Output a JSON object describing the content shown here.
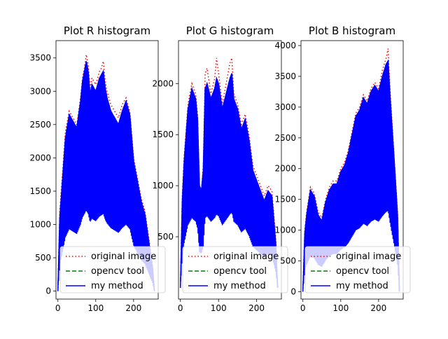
{
  "chart_data": [
    {
      "type": "line",
      "title": "Plot R histogram",
      "xlim": [
        -5,
        265
      ],
      "ylim": [
        -120,
        3760
      ],
      "xticks": [
        0,
        100,
        200
      ],
      "yticks": [
        0,
        500,
        1000,
        1500,
        2000,
        2500,
        3000,
        3500
      ],
      "legend_position": "bottom-left",
      "series": [
        {
          "name": "original image",
          "color": "#ff0000",
          "style": "dotted",
          "x": [
            0,
            5,
            10,
            20,
            30,
            40,
            50,
            60,
            65,
            70,
            75,
            80,
            85,
            90,
            100,
            110,
            115,
            120,
            125,
            130,
            140,
            150,
            160,
            170,
            180,
            190,
            200,
            210,
            220,
            230,
            240,
            250,
            255
          ],
          "y": [
            0,
            1200,
            1600,
            2400,
            2700,
            2600,
            2500,
            2900,
            3200,
            3350,
            3550,
            3400,
            3050,
            3200,
            3100,
            3300,
            3350,
            3450,
            3150,
            3000,
            2800,
            2700,
            2600,
            2800,
            2900,
            2700,
            2000,
            1700,
            1400,
            1200,
            800,
            400,
            0
          ]
        },
        {
          "name": "opencv tool",
          "color": "#008000",
          "style": "dashed",
          "x": [
            0,
            5,
            10,
            20,
            30,
            40,
            50,
            60,
            65,
            70,
            75,
            80,
            85,
            90,
            100,
            110,
            115,
            120,
            125,
            130,
            140,
            150,
            160,
            170,
            180,
            190,
            200,
            210,
            220,
            230,
            240,
            250,
            255
          ],
          "y": [
            0,
            1100,
            1500,
            2300,
            2650,
            2550,
            2450,
            2850,
            3150,
            3300,
            3450,
            3300,
            2950,
            3100,
            3000,
            3200,
            3250,
            3300,
            3050,
            2900,
            2700,
            2600,
            2500,
            2700,
            2850,
            2650,
            1950,
            1650,
            1350,
            1150,
            750,
            350,
            0
          ]
        },
        {
          "name": "my method",
          "color": "#0000ff",
          "style": "solid",
          "x": [
            0,
            5,
            10,
            20,
            30,
            40,
            50,
            60,
            65,
            70,
            75,
            80,
            85,
            90,
            100,
            110,
            115,
            120,
            125,
            130,
            140,
            150,
            160,
            170,
            180,
            190,
            200,
            210,
            220,
            230,
            240,
            250,
            255
          ],
          "y": [
            0,
            1100,
            1500,
            2300,
            2650,
            2550,
            2450,
            2850,
            3150,
            3300,
            3450,
            3300,
            2950,
            3100,
            3000,
            3200,
            3250,
            3300,
            3050,
            2900,
            2700,
            2600,
            2500,
            2700,
            2850,
            2650,
            1950,
            1650,
            1350,
            1150,
            750,
            350,
            0
          ]
        }
      ]
    },
    {
      "type": "line",
      "title": "Plot G histogram",
      "xlim": [
        -5,
        265
      ],
      "ylim": [
        -110,
        2420
      ],
      "xticks": [
        0,
        100,
        200
      ],
      "yticks": [
        500,
        1000,
        1500,
        2000
      ],
      "legend_position": "bottom-left",
      "series": [
        {
          "name": "original image",
          "color": "#ff0000",
          "style": "dotted",
          "x": [
            0,
            5,
            10,
            20,
            30,
            40,
            45,
            50,
            55,
            60,
            65,
            70,
            80,
            90,
            95,
            100,
            110,
            120,
            130,
            135,
            140,
            150,
            160,
            170,
            180,
            190,
            200,
            210,
            220,
            230,
            240,
            250,
            255
          ],
          "y": [
            0,
            900,
            1300,
            1800,
            2000,
            1900,
            1700,
            1000,
            950,
            1200,
            2100,
            2150,
            1900,
            2050,
            2250,
            2100,
            1800,
            2000,
            2200,
            2250,
            1900,
            1800,
            1600,
            1700,
            1500,
            1200,
            1100,
            1000,
            900,
            1000,
            950,
            500,
            0
          ]
        },
        {
          "name": "opencv tool",
          "color": "#008000",
          "style": "dashed",
          "x": [
            0,
            5,
            10,
            20,
            30,
            40,
            45,
            50,
            55,
            60,
            65,
            70,
            80,
            90,
            95,
            100,
            110,
            120,
            130,
            135,
            140,
            150,
            160,
            170,
            180,
            190,
            200,
            210,
            220,
            230,
            240,
            250,
            255
          ],
          "y": [
            0,
            850,
            1250,
            1750,
            1950,
            1850,
            1650,
            1000,
            950,
            1150,
            1950,
            2000,
            1850,
            1950,
            2050,
            2000,
            1750,
            1900,
            2050,
            2100,
            1850,
            1750,
            1550,
            1650,
            1450,
            1150,
            1050,
            950,
            850,
            950,
            900,
            450,
            0
          ]
        },
        {
          "name": "my method",
          "color": "#0000ff",
          "style": "solid",
          "x": [
            0,
            5,
            10,
            20,
            30,
            40,
            45,
            50,
            55,
            60,
            65,
            70,
            80,
            90,
            95,
            100,
            110,
            120,
            130,
            135,
            140,
            150,
            160,
            170,
            180,
            190,
            200,
            210,
            220,
            230,
            240,
            250,
            255
          ],
          "y": [
            0,
            850,
            1250,
            1750,
            1950,
            1850,
            1650,
            1000,
            950,
            1150,
            1950,
            2000,
            1850,
            1950,
            2050,
            2000,
            1750,
            1900,
            2050,
            2100,
            1850,
            1750,
            1550,
            1650,
            1450,
            1150,
            1050,
            950,
            850,
            950,
            900,
            450,
            0
          ]
        }
      ]
    },
    {
      "type": "line",
      "title": "Plot B histogram",
      "xlim": [
        -5,
        265
      ],
      "ylim": [
        -120,
        4080
      ],
      "xticks": [
        0,
        100,
        200
      ],
      "yticks": [
        0,
        500,
        1000,
        1500,
        2000,
        2500,
        3000,
        3500,
        4000
      ],
      "legend_position": "bottom-left",
      "series": [
        {
          "name": "original image",
          "color": "#ff0000",
          "style": "dotted",
          "x": [
            0,
            5,
            10,
            20,
            30,
            40,
            50,
            60,
            70,
            80,
            90,
            100,
            110,
            120,
            130,
            140,
            150,
            160,
            170,
            180,
            190,
            200,
            210,
            215,
            220,
            225,
            230,
            240,
            250,
            255
          ],
          "y": [
            0,
            1000,
            1300,
            1700,
            1600,
            1300,
            1200,
            1500,
            1700,
            1800,
            1800,
            2000,
            2100,
            2300,
            2600,
            2900,
            3000,
            3200,
            3100,
            3300,
            3400,
            3300,
            3600,
            3700,
            3800,
            3950,
            3300,
            2300,
            1300,
            0
          ]
        },
        {
          "name": "opencv tool",
          "color": "#008000",
          "style": "dashed",
          "x": [
            0,
            5,
            10,
            20,
            30,
            40,
            50,
            60,
            70,
            80,
            90,
            100,
            110,
            120,
            130,
            140,
            150,
            160,
            170,
            180,
            190,
            200,
            210,
            215,
            220,
            225,
            230,
            240,
            250,
            255
          ],
          "y": [
            0,
            950,
            1250,
            1650,
            1550,
            1250,
            1150,
            1450,
            1650,
            1750,
            1750,
            1950,
            2050,
            2250,
            2550,
            2850,
            2950,
            3150,
            3050,
            3250,
            3350,
            3250,
            3500,
            3600,
            3700,
            3750,
            3200,
            2250,
            1250,
            0
          ]
        },
        {
          "name": "my method",
          "color": "#0000ff",
          "style": "solid",
          "x": [
            0,
            5,
            10,
            20,
            30,
            40,
            50,
            60,
            70,
            80,
            90,
            100,
            110,
            120,
            130,
            140,
            150,
            160,
            170,
            180,
            190,
            200,
            210,
            215,
            220,
            225,
            230,
            240,
            250,
            255
          ],
          "y": [
            0,
            950,
            1250,
            1650,
            1550,
            1250,
            1150,
            1450,
            1650,
            1750,
            1750,
            1950,
            2050,
            2250,
            2550,
            2850,
            2950,
            3150,
            3050,
            3250,
            3350,
            3250,
            3500,
            3600,
            3700,
            3750,
            3200,
            2250,
            1250,
            0
          ]
        }
      ]
    }
  ]
}
